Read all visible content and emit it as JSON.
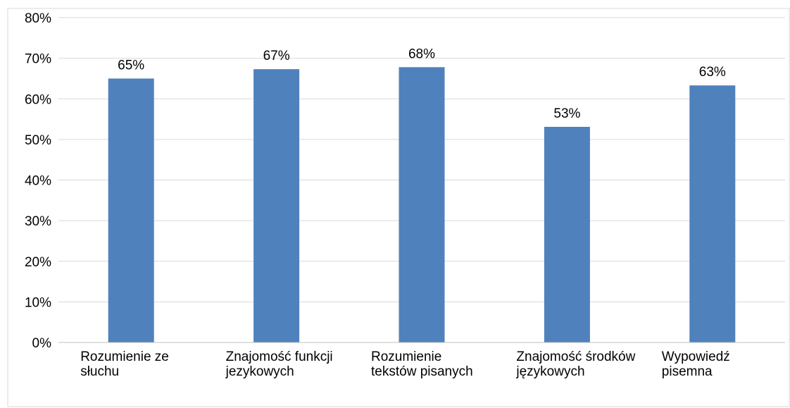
{
  "chart_data": {
    "type": "bar",
    "title": "",
    "xlabel": "",
    "ylabel": "",
    "categories": [
      [
        "Rozumienie ze",
        "słuchu"
      ],
      [
        "Znajomość funkcji",
        "jezykowych"
      ],
      [
        "Rozumienie",
        "tekstów pisanych"
      ],
      [
        "Znajomość środków",
        "językowych"
      ],
      [
        "Wypowiedź",
        "pisemna"
      ]
    ],
    "values": [
      65,
      67.3,
      67.8,
      53.1,
      63.3
    ],
    "value_labels": [
      "65%",
      "67%",
      "68%",
      "53%",
      "63%"
    ],
    "ylim": [
      0,
      80
    ],
    "yticks": [
      0,
      10,
      20,
      30,
      40,
      50,
      60,
      70,
      80
    ],
    "ytick_labels": [
      "0%",
      "10%",
      "20%",
      "30%",
      "40%",
      "50%",
      "60%",
      "70%",
      "80%"
    ],
    "grid": true,
    "legend": "none",
    "bar_color": "#4f81bd",
    "grid_color": "#d9d9d9",
    "axis_color": "#bfbfbf"
  }
}
